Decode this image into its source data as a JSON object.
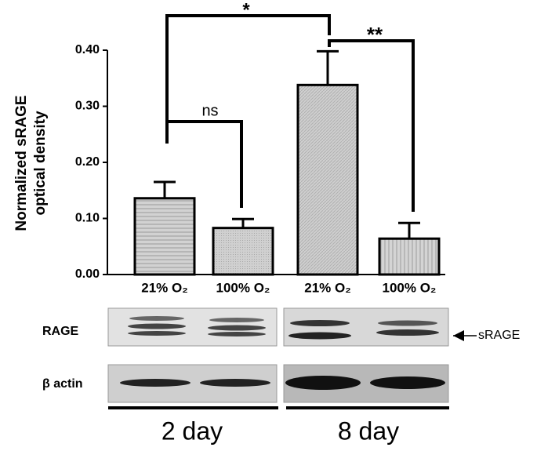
{
  "chart_data": {
    "type": "bar",
    "ylabel": [
      "Normalized sRAGE",
      "optical density"
    ],
    "categories": [
      "21% O₂",
      "100% O₂",
      "21% O₂",
      "100% O₂"
    ],
    "values": [
      0.136,
      0.083,
      0.338,
      0.064
    ],
    "errors": [
      0.029,
      0.016,
      0.06,
      0.028
    ],
    "color": "#c8c8c8",
    "ylim": [
      0,
      0.4
    ],
    "yticks": [
      {
        "value": 0,
        "label": "0.00"
      },
      {
        "value": 0.1,
        "label": "0.10"
      },
      {
        "value": 0.2,
        "label": "0.20"
      },
      {
        "value": 0.3,
        "label": "0.30"
      },
      {
        "value": 0.4,
        "label": "0.40"
      }
    ],
    "annotations": [
      "*",
      "ns",
      "**"
    ]
  },
  "blot": {
    "rows": [
      "RAGE",
      "β actin"
    ],
    "arrow_label": "sRAGE",
    "groups": [
      "2 day",
      "8 day"
    ]
  }
}
